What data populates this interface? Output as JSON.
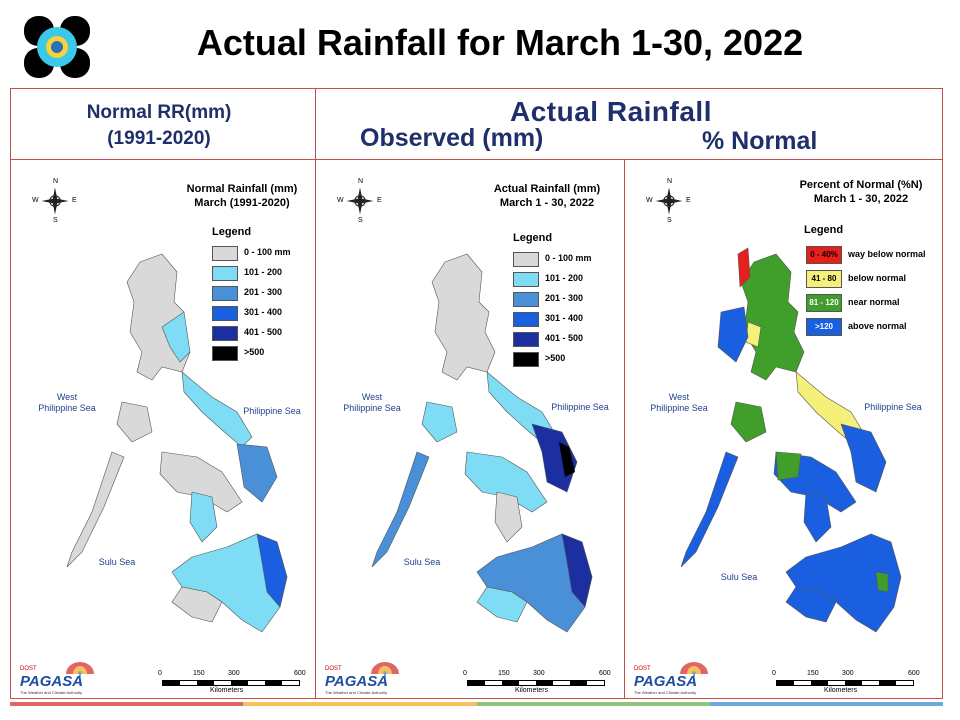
{
  "slide": {
    "title": "Actual Rainfall for March 1-30, 2022"
  },
  "headers": {
    "normal_line1": "Normal RR(mm)",
    "normal_line2": "(1991-2020)",
    "actual": "Actual Rainfall",
    "observed": "Observed (mm)",
    "percent": "% Normal"
  },
  "compass": {
    "n": "N",
    "s": "S",
    "e": "E",
    "w": "W"
  },
  "seas": {
    "west_line1": "West",
    "west_line2": "Philippine Sea",
    "east": "Philippine Sea",
    "sulu": "Sulu Sea"
  },
  "scale": {
    "ticks": [
      "0",
      "150",
      "300",
      "600"
    ],
    "unit": "Kilometers"
  },
  "pagasa": {
    "dost": "DOST",
    "name": "PAGASA",
    "tagline": "The Weather and Climate Authority"
  },
  "panels": {
    "normal": {
      "title_line1": "Normal Rainfall (mm)",
      "title_line2": "March (1991-2020)",
      "legend_title": "Legend",
      "legend": [
        {
          "label": "0 - 100 mm",
          "color": "#d9d9d9"
        },
        {
          "label": "101 - 200",
          "color": "#7fdcf5"
        },
        {
          "label": "201 - 300",
          "color": "#4a90d9"
        },
        {
          "label": "301 - 400",
          "color": "#1a5fe0"
        },
        {
          "label": "401 - 500",
          "color": "#1c2fa0"
        },
        {
          "label": ">500",
          "color": "#000000"
        }
      ]
    },
    "actual": {
      "title_line1": "Actual Rainfall (mm)",
      "title_line2": "March 1 - 30, 2022",
      "legend_title": "Legend",
      "legend": [
        {
          "label": "0 - 100 mm",
          "color": "#d9d9d9"
        },
        {
          "label": "101 - 200",
          "color": "#7fdcf5"
        },
        {
          "label": "201 - 300",
          "color": "#4a90d9"
        },
        {
          "label": "301 - 400",
          "color": "#1a5fe0"
        },
        {
          "label": "401 - 500",
          "color": "#1c2fa0"
        },
        {
          "label": ">500",
          "color": "#000000"
        }
      ]
    },
    "percent": {
      "title_line1": "Percent of Normal (%N)",
      "title_line2": "March 1 - 30, 2022",
      "legend_title": "Legend",
      "legend": [
        {
          "box": "0 - 40%",
          "label": "way below normal",
          "color": "#e8201c"
        },
        {
          "box": "41 - 80",
          "label": "below normal",
          "color": "#f5f07a"
        },
        {
          "box": "81 - 120",
          "label": "near normal",
          "color": "#3f9f2a"
        },
        {
          "box": ">120",
          "label": "above normal",
          "color": "#1a5fe0"
        }
      ]
    }
  },
  "colors": {
    "frame": "#c0504d",
    "heading": "#1f2f6b",
    "bottom_bars": [
      "#e06666",
      "#f6c15b",
      "#93c47d",
      "#6fa8dc"
    ]
  }
}
